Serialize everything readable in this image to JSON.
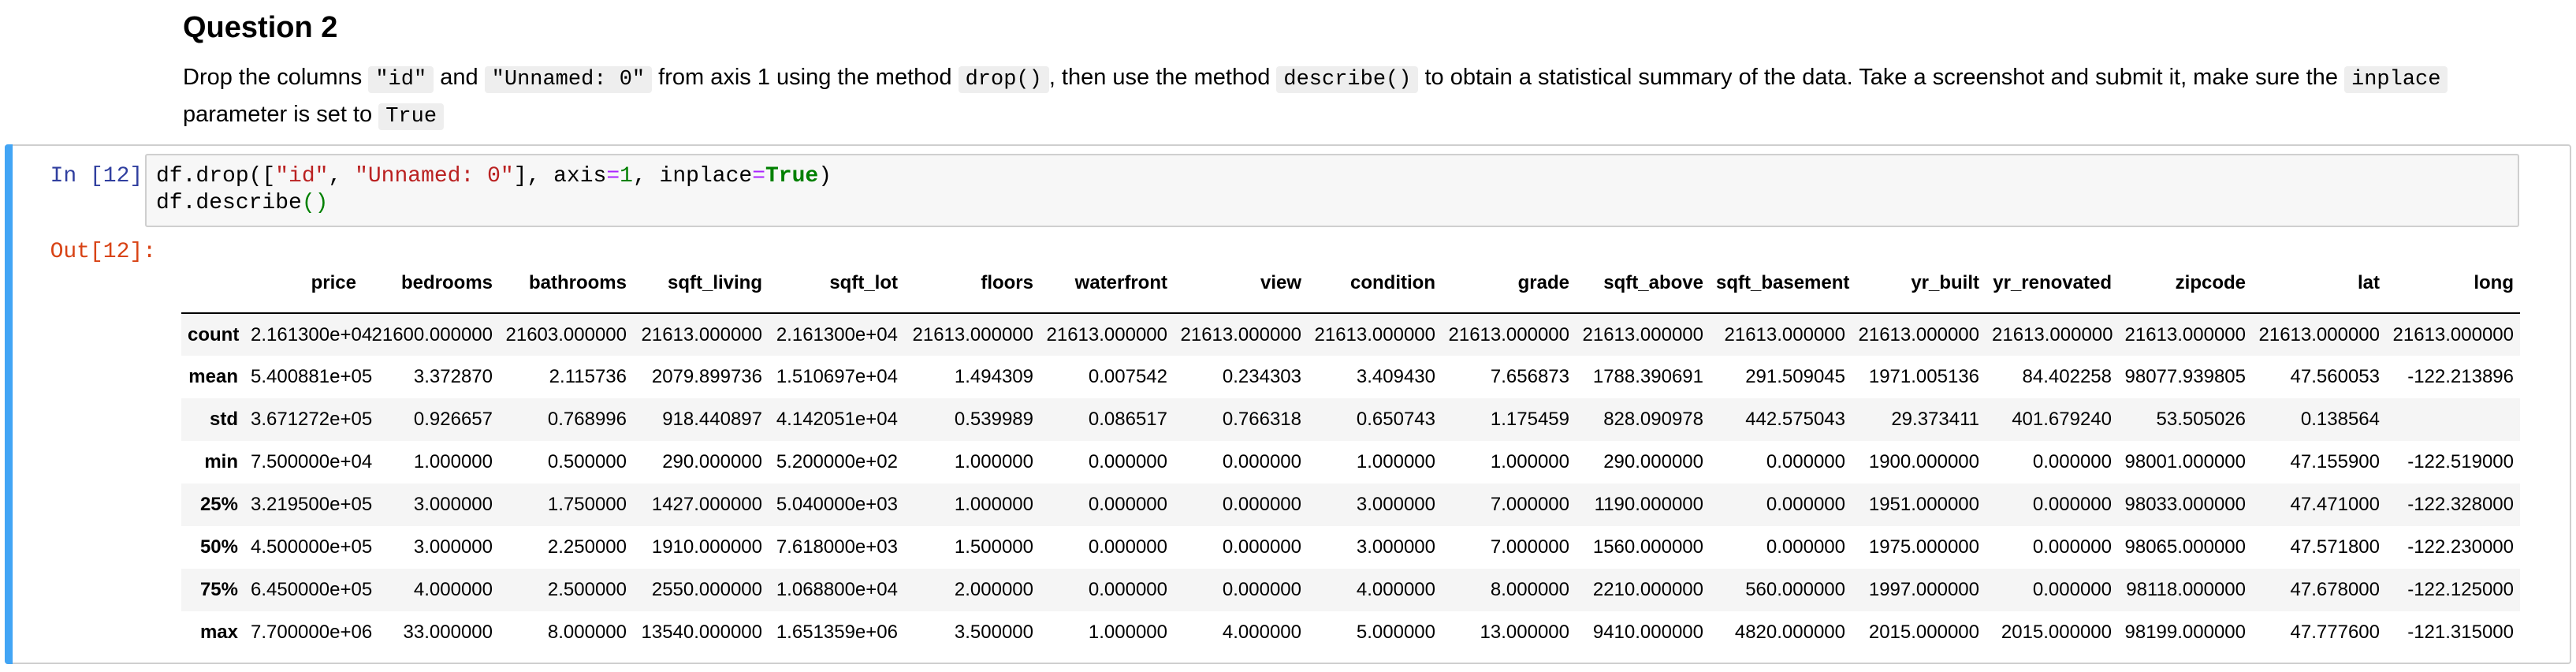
{
  "markdown": {
    "heading": "Question 2",
    "p_drop": "Drop the columns",
    "code_id": "\"id\"",
    "p_and": "and",
    "code_unnamed": "\"Unnamed: 0\"",
    "p_from": "from axis 1 using the method",
    "code_drop": "drop()",
    "p_then": ", then use the method",
    "code_describe": "describe()",
    "p_obtain": "to obtain a statistical summary of the data. Take a screenshot and submit it, make sure the",
    "code_inplace": "inplace",
    "p_param": "parameter is set to",
    "code_true": "True"
  },
  "cell": {
    "in_prompt": "In [12]:",
    "out_prompt": "Out[12]:",
    "code": {
      "l1_a": "df.drop([",
      "l1_s1": "\"id\"",
      "l1_b": ", ",
      "l1_s2": "\"Unnamed: 0\"",
      "l1_c": "], axis",
      "l1_eq1": "=",
      "l1_n1": "1",
      "l1_d": ", inplace",
      "l1_eq2": "=",
      "l1_kw": "True",
      "l1_e": ")",
      "l2_a": "df.describe",
      "l2_par": "()"
    }
  },
  "table": {
    "columns": [
      "price",
      "bedrooms",
      "bathrooms",
      "sqft_living",
      "sqft_lot",
      "floors",
      "waterfront",
      "view",
      "condition",
      "grade",
      "sqft_above",
      "sqft_basement",
      "yr_built",
      "yr_renovated",
      "zipcode",
      "lat",
      "long"
    ],
    "rows": [
      {
        "label": "count",
        "cells": [
          "2.161300e+04",
          "21600.000000",
          "21603.000000",
          "21613.000000",
          "2.161300e+04",
          "21613.000000",
          "21613.000000",
          "21613.000000",
          "21613.000000",
          "21613.000000",
          "21613.000000",
          "21613.000000",
          "21613.000000",
          "21613.000000",
          "21613.000000",
          "21613.000000",
          "21613.000000"
        ]
      },
      {
        "label": "mean",
        "cells": [
          "5.400881e+05",
          "3.372870",
          "2.115736",
          "2079.899736",
          "1.510697e+04",
          "1.494309",
          "0.007542",
          "0.234303",
          "3.409430",
          "7.656873",
          "1788.390691",
          "291.509045",
          "1971.005136",
          "84.402258",
          "98077.939805",
          "47.560053",
          "-122.213896"
        ]
      },
      {
        "label": "std",
        "cells": [
          "3.671272e+05",
          "0.926657",
          "0.768996",
          "918.440897",
          "4.142051e+04",
          "0.539989",
          "0.086517",
          "0.766318",
          "0.650743",
          "1.175459",
          "828.090978",
          "442.575043",
          "29.373411",
          "401.679240",
          "53.505026",
          "0.138564",
          ""
        ]
      },
      {
        "label": "min",
        "cells": [
          "7.500000e+04",
          "1.000000",
          "0.500000",
          "290.000000",
          "5.200000e+02",
          "1.000000",
          "0.000000",
          "0.000000",
          "1.000000",
          "1.000000",
          "290.000000",
          "0.000000",
          "1900.000000",
          "0.000000",
          "98001.000000",
          "47.155900",
          "-122.519000"
        ]
      },
      {
        "label": "25%",
        "cells": [
          "3.219500e+05",
          "3.000000",
          "1.750000",
          "1427.000000",
          "5.040000e+03",
          "1.000000",
          "0.000000",
          "0.000000",
          "3.000000",
          "7.000000",
          "1190.000000",
          "0.000000",
          "1951.000000",
          "0.000000",
          "98033.000000",
          "47.471000",
          "-122.328000"
        ]
      },
      {
        "label": "50%",
        "cells": [
          "4.500000e+05",
          "3.000000",
          "2.250000",
          "1910.000000",
          "7.618000e+03",
          "1.500000",
          "0.000000",
          "0.000000",
          "3.000000",
          "7.000000",
          "1560.000000",
          "0.000000",
          "1975.000000",
          "0.000000",
          "98065.000000",
          "47.571800",
          "-122.230000"
        ]
      },
      {
        "label": "75%",
        "cells": [
          "6.450000e+05",
          "4.000000",
          "2.500000",
          "2550.000000",
          "1.068800e+04",
          "2.000000",
          "0.000000",
          "0.000000",
          "4.000000",
          "8.000000",
          "2210.000000",
          "560.000000",
          "1997.000000",
          "0.000000",
          "98118.000000",
          "47.678000",
          "-122.125000"
        ]
      },
      {
        "label": "max",
        "cells": [
          "7.700000e+06",
          "33.000000",
          "8.000000",
          "13540.000000",
          "1.651359e+06",
          "3.500000",
          "1.000000",
          "4.000000",
          "5.000000",
          "13.000000",
          "9410.000000",
          "4820.000000",
          "2015.000000",
          "2015.000000",
          "98199.000000",
          "47.777600",
          "-121.315000"
        ]
      }
    ]
  }
}
